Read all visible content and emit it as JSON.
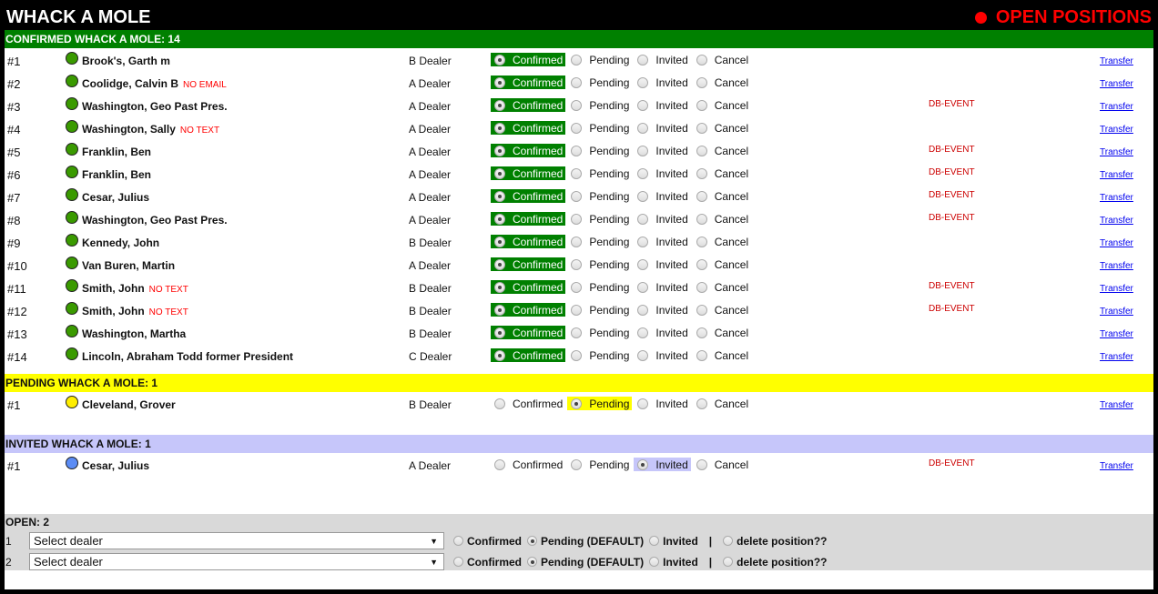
{
  "header": {
    "title": "WHACK A MOLE",
    "open_positions": "OPEN POSITIONS"
  },
  "colors": {
    "confirmed": "#008000",
    "pending": "#ffff00",
    "invited": "#c6c6fa",
    "open": "#d9d9d9",
    "dot_confirmed": "#3a9a00",
    "dot_pending": "#ffee00",
    "dot_invited": "#5b8cf5"
  },
  "status_options": [
    "Confirmed",
    "Pending",
    "Invited",
    "Cancel"
  ],
  "transfer_label": "Transfer",
  "sections": [
    {
      "key": "confirmed",
      "title": "CONFIRMED WHACK A MOLE: 14",
      "selected": "Confirmed",
      "rows": [
        {
          "num": "#1",
          "name": "Brook's, Garth m",
          "flag": "",
          "dealer": "B Dealer",
          "event": ""
        },
        {
          "num": "#2",
          "name": "Coolidge, Calvin B",
          "flag": "NO EMAIL",
          "dealer": "A Dealer",
          "event": ""
        },
        {
          "num": "#3",
          "name": "Washington, Geo Past Pres.",
          "flag": "",
          "dealer": "A Dealer",
          "event": "DB-EVENT"
        },
        {
          "num": "#4",
          "name": "Washington, Sally",
          "flag": "NO TEXT",
          "dealer": "A Dealer",
          "event": ""
        },
        {
          "num": "#5",
          "name": "Franklin, Ben",
          "flag": "",
          "dealer": "A Dealer",
          "event": "DB-EVENT"
        },
        {
          "num": "#6",
          "name": "Franklin, Ben",
          "flag": "",
          "dealer": "A Dealer",
          "event": "DB-EVENT"
        },
        {
          "num": "#7",
          "name": "Cesar, Julius",
          "flag": "",
          "dealer": "A Dealer",
          "event": "DB-EVENT"
        },
        {
          "num": "#8",
          "name": "Washington, Geo Past Pres.",
          "flag": "",
          "dealer": "A Dealer",
          "event": "DB-EVENT"
        },
        {
          "num": "#9",
          "name": "Kennedy, John",
          "flag": "",
          "dealer": "B Dealer",
          "event": ""
        },
        {
          "num": "#10",
          "name": "Van Buren, Martin",
          "flag": "",
          "dealer": "A Dealer",
          "event": ""
        },
        {
          "num": "#11",
          "name": "Smith, John",
          "flag": "NO TEXT",
          "dealer": "B Dealer",
          "event": "DB-EVENT"
        },
        {
          "num": "#12",
          "name": "Smith, John",
          "flag": "NO TEXT",
          "dealer": "B Dealer",
          "event": "DB-EVENT"
        },
        {
          "num": "#13",
          "name": "Washington, Martha",
          "flag": "",
          "dealer": "B Dealer",
          "event": ""
        },
        {
          "num": "#14",
          "name": "Lincoln, Abraham Todd former President",
          "flag": "",
          "dealer": "C Dealer",
          "event": ""
        }
      ]
    },
    {
      "key": "pending",
      "title": "PENDING WHACK A MOLE: 1",
      "selected": "Pending",
      "rows": [
        {
          "num": "#1",
          "name": "Cleveland, Grover",
          "flag": "",
          "dealer": "B Dealer",
          "event": ""
        }
      ]
    },
    {
      "key": "invited",
      "title": "INVITED WHACK A MOLE: 1",
      "selected": "Invited",
      "rows": [
        {
          "num": "#1",
          "name": "Cesar, Julius",
          "flag": "",
          "dealer": "A Dealer",
          "event": "DB-EVENT"
        }
      ]
    }
  ],
  "open": {
    "title": "OPEN: 2",
    "select_placeholder": "Select dealer",
    "options": [
      "Confirmed",
      "Pending (DEFAULT)",
      "Invited"
    ],
    "selected": "Pending (DEFAULT)",
    "separator": "|",
    "delete_label": "delete position??",
    "rows": [
      "1",
      "2"
    ]
  }
}
